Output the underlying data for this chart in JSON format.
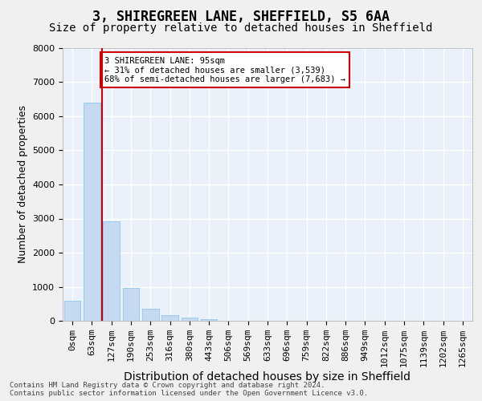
{
  "title": "3, SHIREGREEN LANE, SHEFFIELD, S5 6AA",
  "subtitle": "Size of property relative to detached houses in Sheffield",
  "xlabel": "Distribution of detached houses by size in Sheffield",
  "ylabel": "Number of detached properties",
  "bar_values": [
    580,
    6400,
    2920,
    970,
    360,
    160,
    90,
    55,
    0,
    0,
    0,
    0,
    0,
    0,
    0,
    0,
    0,
    0,
    0,
    0,
    0
  ],
  "bar_labels": [
    "0sqm",
    "63sqm",
    "127sqm",
    "190sqm",
    "253sqm",
    "316sqm",
    "380sqm",
    "443sqm",
    "506sqm",
    "569sqm",
    "633sqm",
    "696sqm",
    "759sqm",
    "822sqm",
    "886sqm",
    "949sqm",
    "1012sqm",
    "1075sqm",
    "1139sqm",
    "1202sqm",
    "1265sqm"
  ],
  "bar_color": "#c5d9f0",
  "bar_edge_color": "#7fbfef",
  "ylim": [
    0,
    8000
  ],
  "yticks": [
    0,
    1000,
    2000,
    3000,
    4000,
    5000,
    6000,
    7000,
    8000
  ],
  "vline_x": 1.5,
  "annotation_text": "3 SHIREGREEN LANE: 95sqm\n← 31% of detached houses are smaller (3,539)\n68% of semi-detached houses are larger (7,683) →",
  "annotation_box_color": "#ffffff",
  "annotation_box_edge": "#cc0000",
  "footer_text": "Contains HM Land Registry data © Crown copyright and database right 2024.\nContains public sector information licensed under the Open Government Licence v3.0.",
  "background_color": "#eaf1fa",
  "grid_color": "#ffffff",
  "title_fontsize": 12,
  "subtitle_fontsize": 10,
  "axis_fontsize": 9,
  "tick_fontsize": 8
}
